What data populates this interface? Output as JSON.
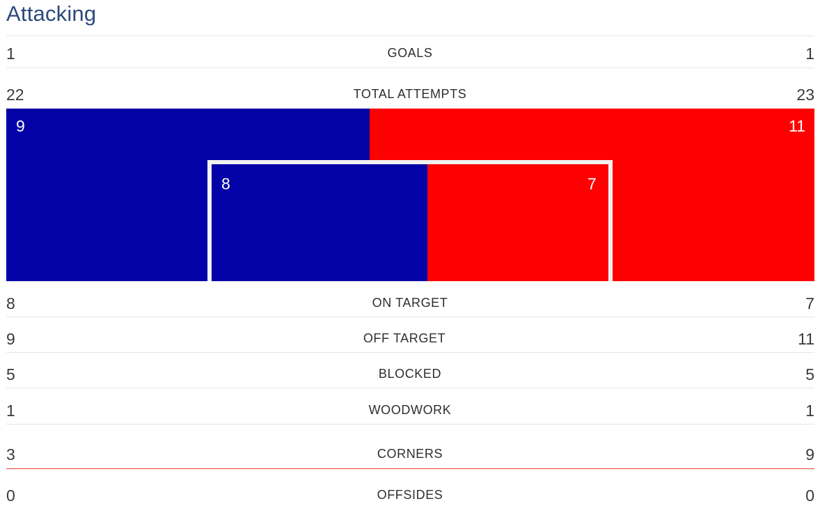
{
  "section": {
    "title": "Attacking"
  },
  "colors": {
    "home": "#0202a6",
    "away": "#ff0000",
    "title": "#2b4a7a"
  },
  "stats": {
    "goals": {
      "label": "GOALS",
      "home": "1",
      "away": "1"
    },
    "total_attempts": {
      "label": "TOTAL ATTEMPTS",
      "home": "22",
      "away": "23"
    },
    "on_target": {
      "label": "ON TARGET",
      "home": "8",
      "away": "7"
    },
    "off_target": {
      "label": "OFF TARGET",
      "home": "9",
      "away": "11"
    },
    "blocked": {
      "label": "BLOCKED",
      "home": "5",
      "away": "5"
    },
    "woodwork": {
      "label": "WOODWORK",
      "home": "1",
      "away": "1"
    },
    "corners": {
      "label": "CORNERS",
      "home": "3",
      "away": "9"
    },
    "offsides": {
      "label": "OFFSIDES",
      "home": "0",
      "away": "0"
    }
  },
  "goal_graphic": {
    "off_target_home": "9",
    "off_target_away": "11",
    "on_target_home": "8",
    "on_target_away": "7"
  }
}
